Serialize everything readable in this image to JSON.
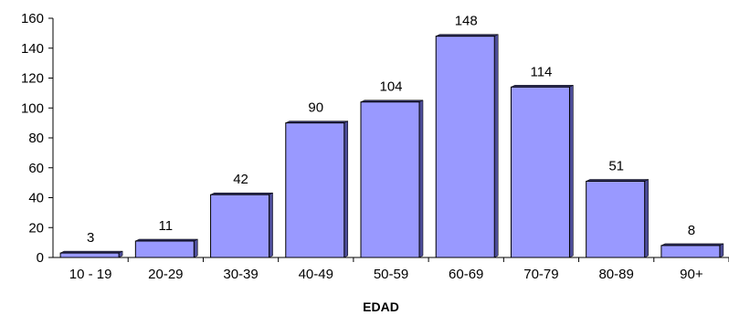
{
  "chart_data": {
    "type": "bar",
    "categories": [
      "10 - 19",
      "20-29",
      "30-39",
      "40-49",
      "50-59",
      "60-69",
      "70-79",
      "80-89",
      "90+"
    ],
    "values": [
      3,
      11,
      42,
      90,
      104,
      148,
      114,
      51,
      8
    ],
    "data_labels": [
      "3",
      "11",
      "42",
      "90",
      "104",
      "148",
      "114",
      "51",
      "8"
    ],
    "xlabel": "EDAD",
    "ylabel": "",
    "ylim": [
      0,
      160
    ],
    "yticks": [
      "0",
      "20",
      "40",
      "60",
      "80",
      "100",
      "120",
      "140",
      "160"
    ],
    "grid": false,
    "legend": "none",
    "colors": {
      "bar_face": "#9999ff",
      "bar_side": "#4d4d99",
      "bar_top": "#333366",
      "axis": "#000000"
    }
  }
}
